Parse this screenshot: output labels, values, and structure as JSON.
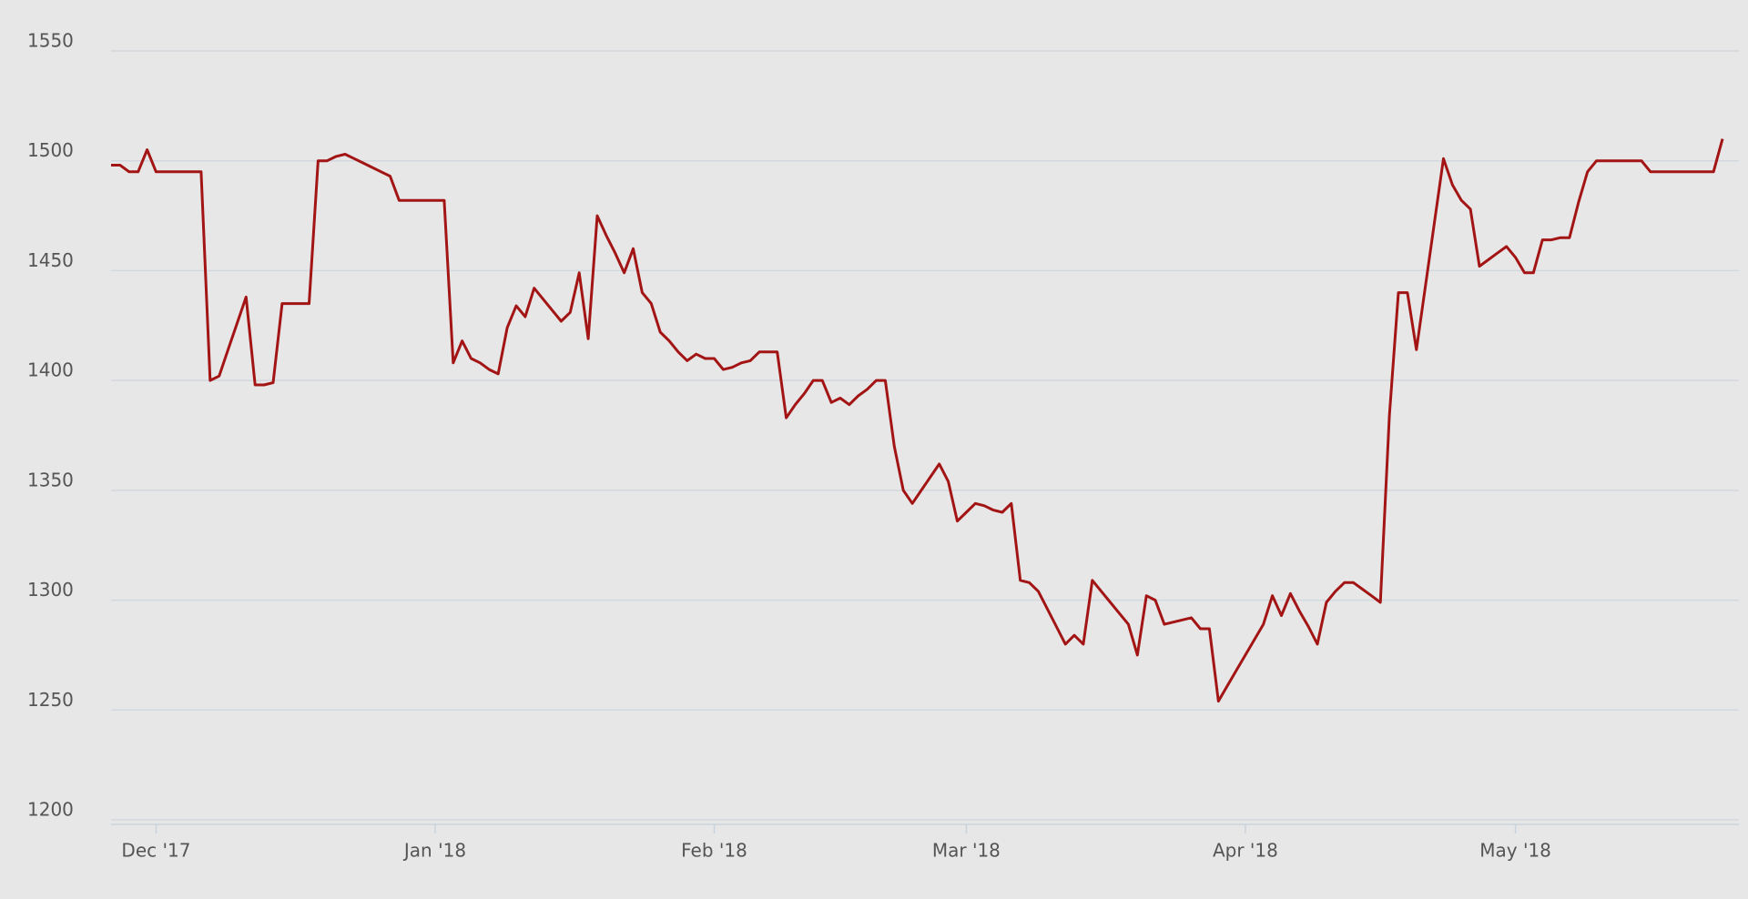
{
  "chart_data": {
    "type": "line",
    "categories": [
      null,
      null,
      null,
      null,
      null,
      "Dec '17",
      null,
      null,
      null,
      null,
      null,
      null,
      null,
      null,
      null,
      null,
      null,
      null,
      null,
      null,
      null,
      null,
      null,
      null,
      null,
      null,
      null,
      null,
      null,
      null,
      null,
      null,
      null,
      null,
      null,
      null,
      "Jan '18",
      null,
      null,
      null,
      null,
      null,
      null,
      null,
      null,
      null,
      null,
      null,
      null,
      null,
      null,
      null,
      null,
      null,
      null,
      null,
      null,
      null,
      null,
      null,
      null,
      null,
      null,
      null,
      null,
      null,
      null,
      "Feb '18",
      null,
      null,
      null,
      null,
      null,
      null,
      null,
      null,
      null,
      null,
      null,
      null,
      null,
      null,
      null,
      null,
      null,
      null,
      null,
      null,
      null,
      null,
      null,
      null,
      null,
      null,
      null,
      "Mar '18",
      null,
      null,
      null,
      null,
      null,
      null,
      null,
      null,
      null,
      null,
      null,
      null,
      null,
      null,
      null,
      null,
      null,
      null,
      null,
      null,
      null,
      null,
      null,
      null,
      null,
      null,
      null,
      null,
      null,
      null,
      "Apr '18",
      null,
      null,
      null,
      null,
      null,
      null,
      null,
      null,
      null,
      null,
      null,
      null,
      null,
      null,
      null,
      null,
      null,
      null,
      null,
      null,
      null,
      null,
      null,
      null,
      null,
      null,
      null,
      null,
      null,
      "May '18",
      null,
      null,
      null,
      null,
      null,
      null,
      null,
      null,
      null,
      null,
      null,
      null,
      null,
      null,
      null,
      null,
      null,
      null,
      null,
      null,
      null,
      null,
      null
    ],
    "series": [
      {
        "color": "#a31515",
        "values": [
          1498,
          1498,
          1495,
          1495,
          1505,
          1495,
          1495,
          1495,
          1495,
          1495,
          1495,
          1400,
          1402,
          1414,
          1426,
          1438,
          1398,
          1398,
          1399,
          1435,
          1435,
          1435,
          1435,
          1500,
          1500,
          1502,
          1503,
          1501,
          1499,
          1497,
          1495,
          1493,
          1482,
          1482,
          1482,
          1482,
          1482,
          1482,
          1408,
          1418,
          1410,
          1408,
          1405,
          1403,
          1424,
          1434,
          1429,
          1442,
          1437,
          1432,
          1427,
          1431,
          1449,
          1419,
          1475,
          1466,
          1458,
          1449,
          1460,
          1440,
          1435,
          1422,
          1418,
          1413,
          1409,
          1412,
          1410,
          1410,
          1405,
          1406,
          1408,
          1409,
          1413,
          1413,
          1413,
          1383,
          1389,
          1394,
          1400,
          1400,
          1390,
          1392,
          1389,
          1393,
          1396,
          1400,
          1400,
          1370,
          1350,
          1344,
          1350,
          1356,
          1362,
          1354,
          1336,
          1340,
          1344,
          1343,
          1341,
          1340,
          1344,
          1309,
          1308,
          1304,
          1296,
          1288,
          1280,
          1284,
          1280,
          1309,
          1304,
          1299,
          1294,
          1289,
          1275,
          1302,
          1300,
          1289,
          1290,
          1291,
          1292,
          1287,
          1287,
          1254,
          1261,
          1268,
          1275,
          1282,
          1289,
          1302,
          1293,
          1303,
          1295,
          1288,
          1280,
          1299,
          1304,
          1308,
          1308,
          1305,
          1302,
          1299,
          1384,
          1440,
          1440,
          1414,
          1443,
          1472,
          1501,
          1489,
          1482,
          1478,
          1452,
          1455,
          1458,
          1461,
          1456,
          1449,
          1449,
          1464,
          1464,
          1465,
          1465,
          1481,
          1495,
          1500,
          1500,
          1500,
          1500,
          1500,
          1500,
          1495,
          1495,
          1495,
          1495,
          1495,
          1495,
          1495,
          1495,
          1510
        ]
      }
    ],
    "ylim": [
      1200,
      1550
    ],
    "yticks": [
      1200,
      1250,
      1300,
      1350,
      1400,
      1450,
      1500,
      1550
    ],
    "grid": true
  }
}
